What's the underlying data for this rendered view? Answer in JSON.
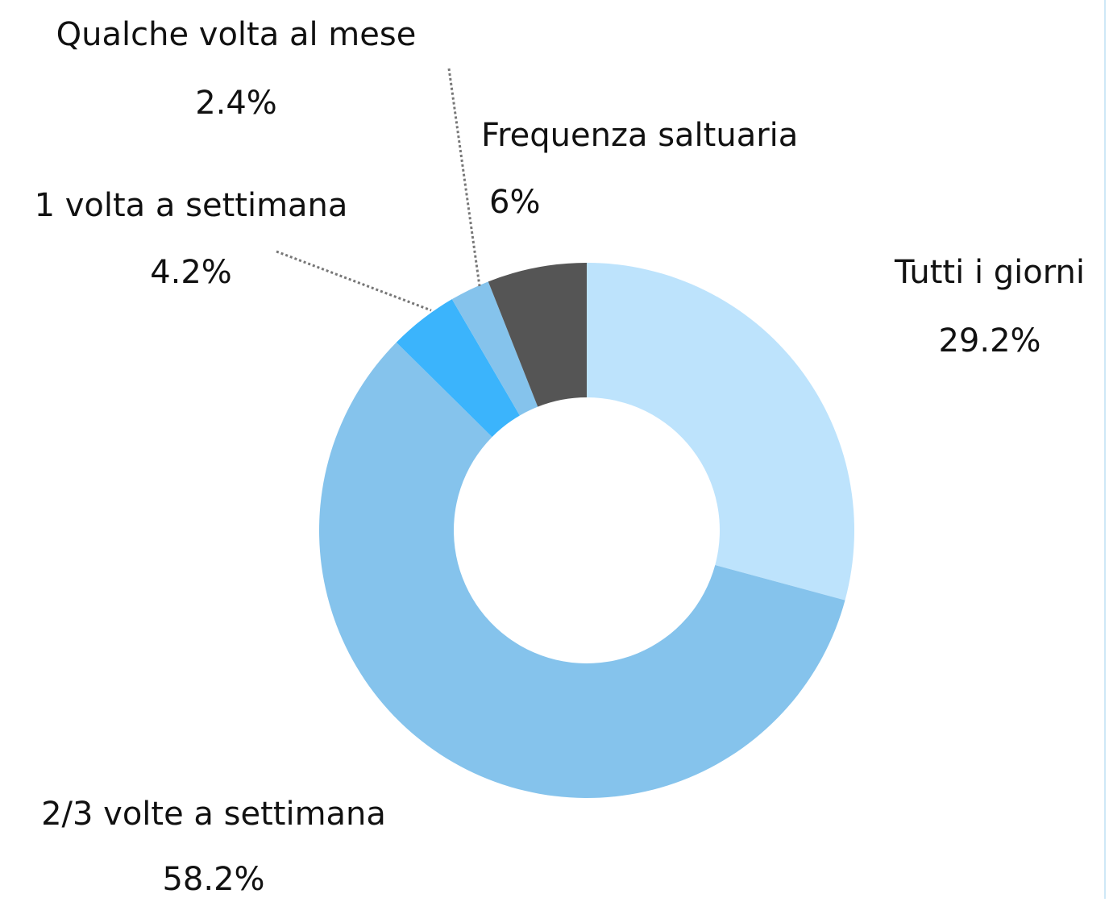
{
  "chart_data": {
    "type": "donut",
    "categories": [
      "Tutti i giorni",
      "2/3 volte a settimana",
      "1 volta a settimana",
      "Qualche volta al mese",
      "Frequenza saltuaria"
    ],
    "values": [
      29.2,
      58.2,
      4.2,
      2.4,
      6
    ],
    "value_labels": [
      "29.2%",
      "58.2%",
      "4.2%",
      "2.4%",
      "6%"
    ],
    "colors": [
      "#bde3fc",
      "#85c3ec",
      "#3bb4fc",
      "#85c3ec",
      "#555555"
    ]
  }
}
